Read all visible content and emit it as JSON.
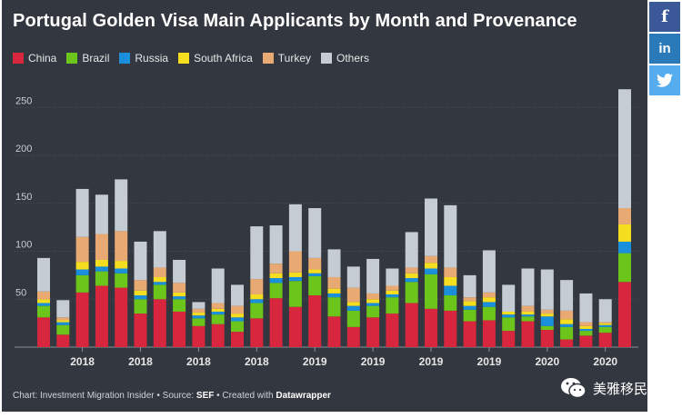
{
  "title": "Portugal Golden Visa Main Applicants by Month and Provenance",
  "footer": {
    "prefix": "Chart: Investment Migration Insider • Source: ",
    "source": "SEF",
    "middle": " • Created with ",
    "tool": "Datawrapper"
  },
  "watermark_text": "美雅移民",
  "share_icons": [
    "facebook-icon",
    "linkedin-icon",
    "twitter-icon"
  ],
  "chart_data": {
    "type": "bar",
    "stacked": true,
    "title": "Portugal Golden Visa Main Applicants by Month and Provenance",
    "xlabel": "",
    "ylabel": "",
    "ylim": [
      0,
      270
    ],
    "yticks": [
      50,
      100,
      150,
      200,
      250
    ],
    "grid": true,
    "legend_position": "top-left",
    "x_tick_labels": [
      {
        "bar_index": 2,
        "label": "2018"
      },
      {
        "bar_index": 5,
        "label": "2018"
      },
      {
        "bar_index": 8,
        "label": "2018"
      },
      {
        "bar_index": 11,
        "label": "2018"
      },
      {
        "bar_index": 14,
        "label": "2019"
      },
      {
        "bar_index": 17,
        "label": "2019"
      },
      {
        "bar_index": 20,
        "label": "2019"
      },
      {
        "bar_index": 23,
        "label": "2019"
      },
      {
        "bar_index": 26,
        "label": "2020"
      },
      {
        "bar_index": 29,
        "label": "2020"
      }
    ],
    "series": [
      {
        "name": "China",
        "color": "#d7263d",
        "values": [
          31,
          13,
          57,
          64,
          62,
          35,
          50,
          37,
          22,
          24,
          16,
          30,
          51,
          42,
          54,
          32,
          21,
          31,
          35,
          46,
          40,
          38,
          27,
          28,
          17,
          27,
          18,
          8,
          12,
          15,
          68
        ]
      },
      {
        "name": "Brazil",
        "color": "#6cc51a",
        "values": [
          12,
          10,
          18,
          15,
          15,
          15,
          15,
          13,
          8,
          10,
          11,
          16,
          16,
          27,
          20,
          20,
          17,
          12,
          17,
          22,
          36,
          16,
          12,
          14,
          14,
          5,
          4,
          13,
          5,
          6,
          30
        ]
      },
      {
        "name": "Russia",
        "color": "#1a8fdc",
        "values": [
          3,
          3,
          6,
          5,
          5,
          4,
          3,
          3,
          3,
          3,
          4,
          4,
          5,
          4,
          3,
          4,
          5,
          3,
          3,
          4,
          6,
          10,
          4,
          5,
          3,
          2,
          10,
          3,
          2,
          2,
          12
        ]
      },
      {
        "name": "South Africa",
        "color": "#f5dd20",
        "values": [
          4,
          2,
          8,
          7,
          8,
          5,
          5,
          4,
          3,
          3,
          4,
          5,
          5,
          5,
          4,
          5,
          4,
          4,
          4,
          5,
          6,
          9,
          5,
          5,
          3,
          3,
          3,
          5,
          3,
          2,
          18
        ]
      },
      {
        "name": "Turkey",
        "color": "#e8aa72",
        "values": [
          8,
          3,
          26,
          27,
          31,
          11,
          10,
          10,
          4,
          6,
          8,
          16,
          10,
          22,
          12,
          12,
          15,
          6,
          5,
          6,
          7,
          10,
          4,
          5,
          0,
          6,
          4,
          9,
          4,
          1,
          17
        ]
      },
      {
        "name": "Others",
        "color": "#c5ccd3",
        "values": [
          35,
          18,
          50,
          41,
          54,
          40,
          38,
          24,
          7,
          36,
          22,
          55,
          40,
          49,
          52,
          29,
          22,
          36,
          18,
          37,
          60,
          65,
          23,
          44,
          28,
          39,
          42,
          32,
          30,
          24,
          124
        ]
      }
    ]
  }
}
